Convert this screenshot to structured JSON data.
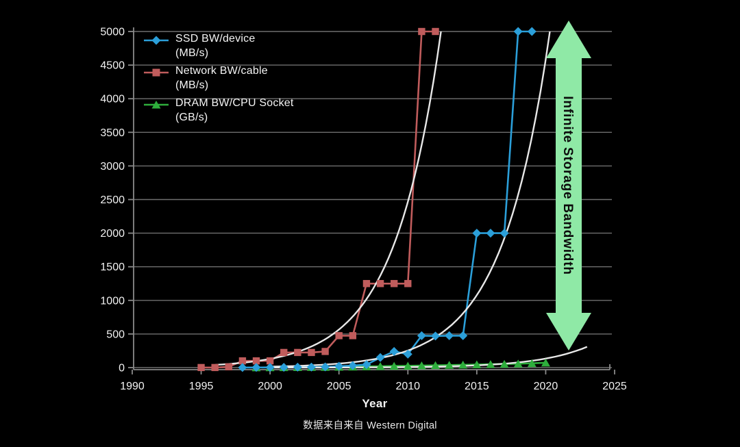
{
  "page": {
    "background": "#000000"
  },
  "colors": {
    "grid": "#6f6f6f",
    "axis": "#8a8a8a",
    "tick_text": "#f2f2f2",
    "trend_line": "#e8e8e8",
    "ssd_blue": "#2b9fd9",
    "network_red": "#c05c5c",
    "dram_green": "#2eae3c",
    "arrow_green": "#8fe9a6"
  },
  "legend": [
    {
      "line1": "SSD BW/device",
      "line2": "(MB/s)",
      "color": "#2b9fd9",
      "marker": "diamond"
    },
    {
      "line1": "Network BW/cable",
      "line2": "(MB/s)",
      "color": "#c05c5c",
      "marker": "square"
    },
    {
      "line1": "DRAM BW/CPU Socket",
      "line2": "(GB/s)",
      "color": "#2eae3c",
      "marker": "triangle"
    }
  ],
  "annotation": {
    "arrow_label": "Infinite Storage Bandwidth",
    "arrow_color": "#8fe9a6",
    "arrow_text_color": "#0b0b0b"
  },
  "caption": "数据来自来自 Western Digital",
  "chart_data": {
    "type": "line",
    "title": "",
    "xlabel": "Year",
    "ylabel": "",
    "xlim": [
      1990,
      2025
    ],
    "ylim": [
      0,
      5000
    ],
    "grid": true,
    "legend_position": "top-left",
    "x_ticks": [
      1990,
      1995,
      2000,
      2005,
      2010,
      2015,
      2020,
      2025
    ],
    "y_ticks": [
      0,
      500,
      1000,
      1500,
      2000,
      2500,
      3000,
      3500,
      4000,
      4500,
      5000
    ],
    "series": [
      {
        "name": "Network BW/cable (MB/s)",
        "color": "#c05c5c",
        "marker": "square",
        "x": [
          1995,
          1996,
          1997,
          1998,
          1999,
          2000,
          2001,
          2002,
          2003,
          2004,
          2005,
          2006,
          2007,
          2008,
          2009,
          2010,
          2011,
          2012
        ],
        "y": [
          1,
          1,
          12,
          100,
          100,
          100,
          225,
          225,
          225,
          240,
          475,
          475,
          1250,
          1250,
          1250,
          1250,
          5000,
          5000
        ]
      },
      {
        "name": "DRAM BW/CPU Socket (GB/s)",
        "color": "#2eae3c",
        "marker": "triangle",
        "x": [
          1999,
          2000,
          2001,
          2002,
          2003,
          2004,
          2005,
          2006,
          2007,
          2008,
          2009,
          2010,
          2011,
          2012,
          2013,
          2014,
          2015,
          2016,
          2017,
          2018,
          2019,
          2020
        ],
        "y": [
          1.6,
          3,
          4,
          5,
          6,
          8,
          10,
          13,
          17,
          20,
          24,
          26,
          30,
          34,
          38,
          42,
          46,
          50,
          54,
          58,
          64,
          72
        ]
      },
      {
        "name": "SSD BW/device (MB/s)",
        "color": "#2b9fd9",
        "marker": "diamond",
        "x": [
          1998,
          1999,
          2000,
          2001,
          2002,
          2003,
          2004,
          2005,
          2006,
          2007,
          2008,
          2009,
          2010,
          2011,
          2012,
          2013,
          2014,
          2015,
          2016,
          2017,
          2018,
          2019
        ],
        "y": [
          1,
          2,
          3,
          4,
          6,
          8,
          10,
          20,
          30,
          45,
          150,
          240,
          200,
          475,
          470,
          475,
          475,
          2000,
          2000,
          2000,
          5000,
          5000
        ]
      }
    ],
    "trend_lines": [
      {
        "name": "network-exponential-trend",
        "x0": 1996,
        "v0": 40,
        "x1": 2012.4,
        "v1": 5000
      },
      {
        "name": "ssd-exponential-trend",
        "x0": 2000,
        "v0": 14,
        "x1": 2020.3,
        "v1": 5000
      },
      {
        "name": "dram-exponential-trend",
        "x0": 2000,
        "v0": 0.5,
        "x1": 2023,
        "v1": 310
      }
    ]
  }
}
